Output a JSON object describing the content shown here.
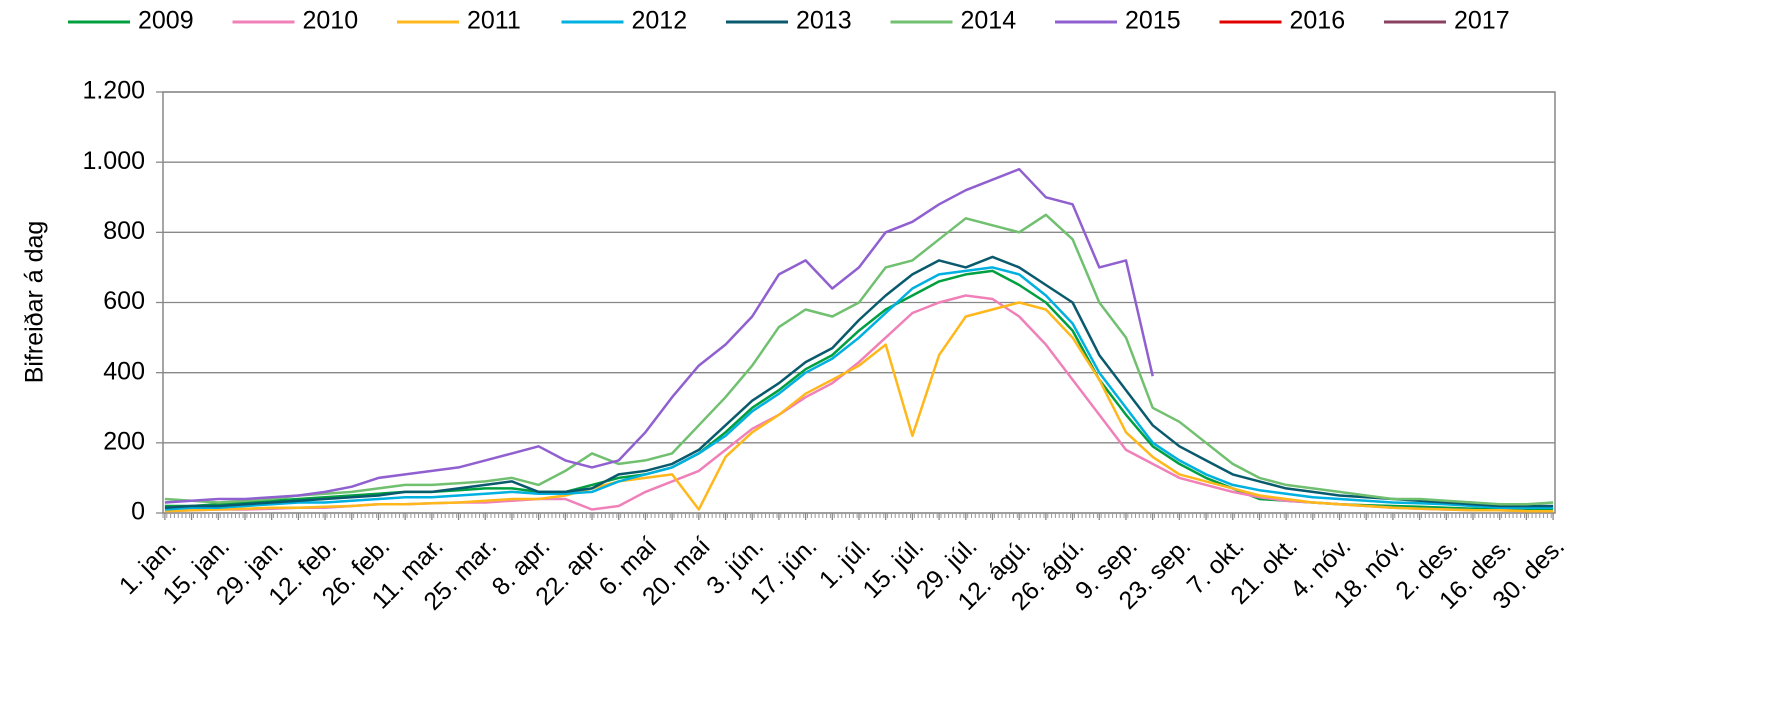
{
  "chart_data": {
    "type": "line",
    "ylabel": "Bifreiðar á dag",
    "categories": [
      "1. jan.",
      null,
      "15. jan.",
      null,
      "29. jan.",
      null,
      "12. feb.",
      null,
      "26. feb.",
      null,
      "11. mar.",
      null,
      "25. mar.",
      null,
      "8. apr.",
      null,
      "22. apr.",
      null,
      "6. maí",
      null,
      "20. maí",
      null,
      "3. jún.",
      null,
      "17. jún.",
      null,
      "1. júl.",
      null,
      "15. júl.",
      null,
      "29. júl.",
      null,
      "12. ágú.",
      null,
      "26. ágú.",
      null,
      "9. sep.",
      null,
      "23. sep.",
      null,
      "7. okt.",
      null,
      "21. okt.",
      null,
      "4. nóv.",
      null,
      "18. nóv.",
      null,
      "2. des.",
      null,
      "16. des.",
      null,
      "30. des."
    ],
    "ylim": [
      0,
      1200
    ],
    "yticks": [
      0,
      200,
      400,
      600,
      800,
      {
        "value": 1000,
        "label": "1.000"
      },
      {
        "value": 1200,
        "label": "1.200"
      }
    ],
    "grid": true,
    "legend": "top",
    "series": [
      {
        "name": "2009",
        "color": "#00a040",
        "values": [
          20,
          20,
          25,
          30,
          35,
          40,
          45,
          50,
          55,
          60,
          60,
          65,
          70,
          70,
          60,
          60,
          80,
          100,
          110,
          130,
          170,
          230,
          300,
          350,
          410,
          450,
          520,
          580,
          620,
          660,
          680,
          690,
          650,
          600,
          520,
          380,
          280,
          190,
          140,
          100,
          70,
          40,
          35,
          30,
          25,
          22,
          20,
          18,
          15,
          12,
          10,
          10,
          10
        ]
      },
      {
        "name": "2010",
        "color": "#f080b8",
        "values": [
          5,
          8,
          10,
          10,
          12,
          15,
          15,
          20,
          25,
          25,
          28,
          30,
          30,
          35,
          40,
          40,
          10,
          20,
          60,
          90,
          120,
          180,
          240,
          280,
          330,
          370,
          430,
          500,
          570,
          600,
          620,
          610,
          560,
          480,
          380,
          280,
          180,
          140,
          100,
          80,
          60,
          45,
          35,
          30,
          25,
          20,
          15,
          12,
          10,
          8,
          8,
          5,
          5
        ]
      },
      {
        "name": "2011",
        "color": "#ffb81c",
        "values": [
          5,
          8,
          10,
          12,
          15,
          15,
          18,
          20,
          25,
          25,
          28,
          30,
          35,
          40,
          40,
          50,
          70,
          90,
          100,
          110,
          10,
          160,
          230,
          280,
          340,
          380,
          420,
          480,
          220,
          450,
          560,
          580,
          600,
          580,
          500,
          380,
          230,
          160,
          110,
          90,
          70,
          50,
          40,
          30,
          25,
          20,
          15,
          12,
          10,
          8,
          8,
          5,
          5
        ]
      },
      {
        "name": "2012",
        "color": "#00b0e0",
        "values": [
          10,
          15,
          15,
          20,
          25,
          30,
          30,
          35,
          40,
          45,
          45,
          50,
          55,
          60,
          55,
          55,
          60,
          90,
          110,
          130,
          170,
          220,
          290,
          340,
          400,
          440,
          500,
          570,
          640,
          680,
          690,
          700,
          680,
          620,
          540,
          400,
          300,
          200,
          150,
          110,
          80,
          65,
          55,
          45,
          40,
          35,
          30,
          28,
          25,
          20,
          15,
          15,
          15
        ]
      },
      {
        "name": "2013",
        "color": "#0a5a6e",
        "values": [
          15,
          20,
          20,
          25,
          30,
          35,
          40,
          45,
          50,
          60,
          60,
          70,
          80,
          90,
          60,
          60,
          70,
          110,
          120,
          140,
          180,
          250,
          320,
          370,
          430,
          470,
          550,
          620,
          680,
          720,
          700,
          730,
          700,
          650,
          600,
          450,
          350,
          250,
          190,
          150,
          110,
          90,
          70,
          60,
          50,
          45,
          40,
          35,
          30,
          25,
          20,
          20,
          20
        ]
      },
      {
        "name": "2014",
        "color": "#70c070",
        "values": [
          40,
          35,
          30,
          35,
          40,
          50,
          55,
          60,
          70,
          80,
          80,
          85,
          90,
          100,
          80,
          120,
          170,
          140,
          150,
          170,
          250,
          330,
          420,
          530,
          580,
          560,
          600,
          700,
          720,
          780,
          840,
          820,
          800,
          850,
          780,
          600,
          500,
          300,
          260,
          200,
          140,
          100,
          80,
          70,
          60,
          50,
          40,
          40,
          35,
          30,
          25,
          25,
          30
        ]
      },
      {
        "name": "2015",
        "color": "#9060d0",
        "values": [
          30,
          35,
          40,
          40,
          45,
          50,
          60,
          75,
          100,
          110,
          120,
          130,
          150,
          170,
          190,
          150,
          130,
          150,
          230,
          330,
          420,
          480,
          560,
          680,
          720,
          640,
          700,
          800,
          830,
          880,
          920,
          950,
          980,
          900,
          880,
          700,
          720,
          390,
          null,
          null,
          null,
          null,
          null,
          null,
          null,
          null,
          null,
          null,
          null,
          null,
          null,
          null,
          null
        ]
      },
      {
        "name": "2016",
        "color": "#e00000",
        "values": [
          null,
          null,
          null,
          null,
          null,
          null,
          null,
          null,
          null,
          null,
          null,
          null,
          null,
          null,
          null,
          null,
          null,
          null,
          null,
          null,
          null,
          null,
          null,
          null,
          null,
          null,
          null,
          null,
          null,
          null,
          null,
          null,
          null,
          null,
          null,
          null,
          null,
          null,
          null,
          null,
          null,
          null,
          null,
          null,
          null,
          null,
          null,
          null,
          null,
          null,
          null,
          null,
          null
        ]
      },
      {
        "name": "2017",
        "color": "#8a4060",
        "values": [
          null,
          null,
          null,
          null,
          null,
          null,
          null,
          null,
          null,
          null,
          null,
          null,
          null,
          null,
          null,
          null,
          null,
          null,
          null,
          null,
          null,
          null,
          null,
          null,
          null,
          null,
          null,
          null,
          null,
          null,
          null,
          null,
          null,
          null,
          null,
          null,
          null,
          null,
          null,
          null,
          null,
          null,
          null,
          null,
          null,
          null,
          null,
          null,
          null,
          null,
          null,
          null,
          null
        ]
      }
    ]
  }
}
